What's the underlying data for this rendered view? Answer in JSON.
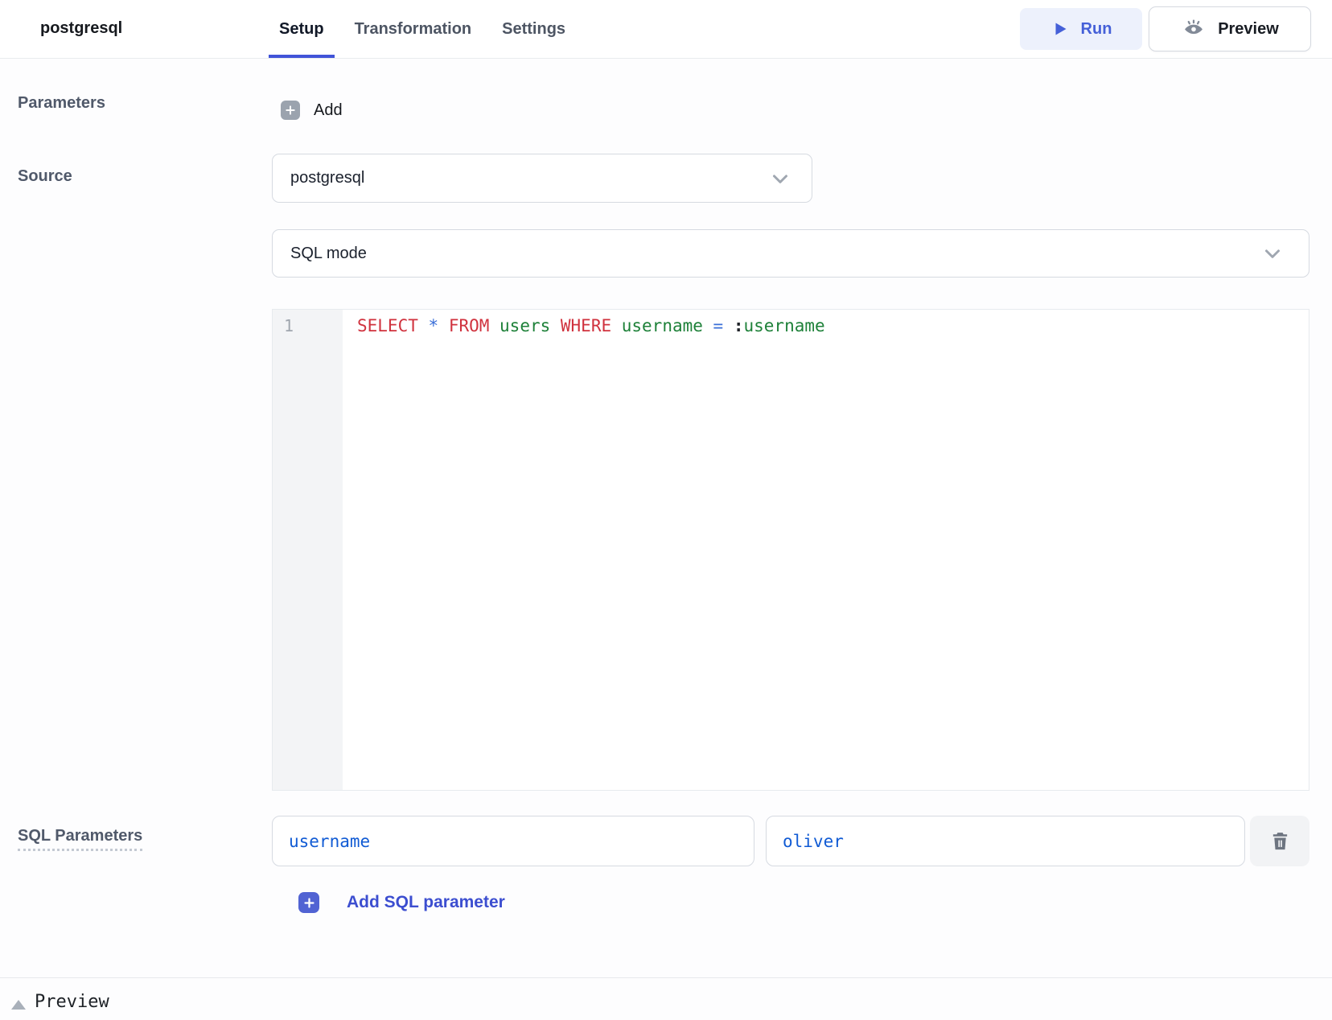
{
  "header": {
    "title": "postgresql",
    "tabs": [
      {
        "label": "Setup",
        "active": true
      },
      {
        "label": "Transformation",
        "active": false
      },
      {
        "label": "Settings",
        "active": false
      }
    ],
    "run_button": {
      "label": "Run"
    },
    "preview_button": {
      "label": "Preview"
    }
  },
  "setup_form": {
    "parameters": {
      "label": "Parameters",
      "add_button_label": "Add"
    },
    "source": {
      "label": "Source",
      "selected_value": "postgresql"
    },
    "language_mode": {
      "selected_value": "SQL mode"
    }
  },
  "code_editor": {
    "line_numbers": [
      "1"
    ],
    "code_text": "SELECT * FROM users WHERE username = :username",
    "tokens": [
      {
        "text": "SELECT ",
        "type": "keyword"
      },
      {
        "text": "* ",
        "type": "operator"
      },
      {
        "text": "FROM ",
        "type": "keyword"
      },
      {
        "text": "users ",
        "type": "identifier"
      },
      {
        "text": "WHERE ",
        "type": "keyword"
      },
      {
        "text": "username ",
        "type": "identifier"
      },
      {
        "text": "= ",
        "type": "operator"
      },
      {
        "text": ":",
        "type": "punctuation"
      },
      {
        "text": "username",
        "type": "identifier"
      }
    ]
  },
  "sql_parameters": {
    "label": "SQL Parameters",
    "rows": [
      {
        "name": "username",
        "value": "oliver"
      }
    ],
    "add_button_label": "Add SQL parameter"
  },
  "footer": {
    "section_label": "Preview"
  },
  "colors": {
    "accent_blue": "#4154d8",
    "run_bg": "#edf1fc",
    "keyword_red": "#d0323e",
    "operator_blue": "#3a6fd8",
    "identifier_green": "#1e8139",
    "param_text_blue": "#115bd4"
  }
}
